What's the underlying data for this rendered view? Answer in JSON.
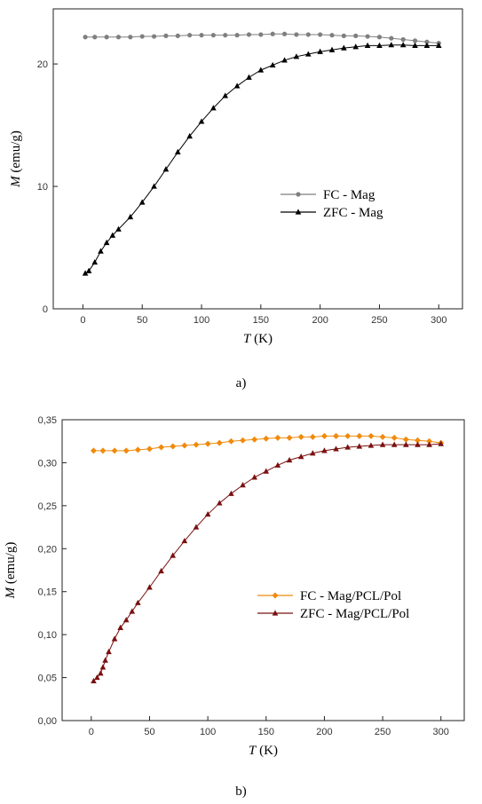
{
  "chart_data": [
    {
      "type": "scatter",
      "panel_label": "a)",
      "xlabel": {
        "symbol": "T",
        "unit": " (K)"
      },
      "ylabel": {
        "symbol": "M",
        "unit": " (emu/g)"
      },
      "xlim": [
        -25,
        320
      ],
      "ylim": [
        0,
        24.5
      ],
      "x_ticks": [
        0,
        50,
        100,
        150,
        200,
        250,
        300
      ],
      "y_ticks": [
        0,
        10,
        20
      ],
      "y_tick_labels": [
        "0",
        "10",
        "20"
      ],
      "legend": "center-right",
      "series": [
        {
          "name": "FC - Mag",
          "color": "#7f7f7f",
          "marker": "circle",
          "x": [
            2,
            10,
            20,
            30,
            40,
            50,
            60,
            70,
            80,
            90,
            100,
            110,
            120,
            130,
            140,
            150,
            160,
            170,
            180,
            190,
            200,
            210,
            220,
            230,
            240,
            250,
            260,
            270,
            280,
            290,
            300
          ],
          "y": [
            22.2,
            22.2,
            22.2,
            22.2,
            22.2,
            22.25,
            22.25,
            22.3,
            22.3,
            22.35,
            22.35,
            22.35,
            22.35,
            22.35,
            22.4,
            22.4,
            22.45,
            22.45,
            22.4,
            22.4,
            22.4,
            22.35,
            22.3,
            22.3,
            22.25,
            22.2,
            22.1,
            22.0,
            21.9,
            21.8,
            21.7
          ]
        },
        {
          "name": "ZFC - Mag",
          "color": "#000000",
          "marker": "triangle",
          "x": [
            2,
            5,
            10,
            15,
            20,
            25,
            30,
            40,
            50,
            60,
            70,
            80,
            90,
            100,
            110,
            120,
            130,
            140,
            150,
            160,
            170,
            180,
            190,
            200,
            210,
            220,
            230,
            240,
            250,
            260,
            270,
            280,
            290,
            300
          ],
          "y": [
            2.9,
            3.1,
            3.8,
            4.7,
            5.4,
            6.0,
            6.5,
            7.5,
            8.7,
            10.0,
            11.4,
            12.8,
            14.1,
            15.3,
            16.4,
            17.4,
            18.2,
            18.9,
            19.5,
            19.9,
            20.3,
            20.6,
            20.8,
            21.0,
            21.15,
            21.3,
            21.4,
            21.5,
            21.5,
            21.55,
            21.55,
            21.5,
            21.5,
            21.5
          ]
        }
      ]
    },
    {
      "type": "scatter",
      "panel_label": "b)",
      "xlabel": {
        "symbol": "T",
        "unit": " (K)"
      },
      "ylabel": {
        "symbol": "M",
        "unit": " (emu/g)"
      },
      "xlim": [
        -25,
        320
      ],
      "ylim": [
        0,
        0.35
      ],
      "x_ticks": [
        0,
        50,
        100,
        150,
        200,
        250,
        300
      ],
      "y_ticks": [
        0,
        0.05,
        0.1,
        0.15,
        0.2,
        0.25,
        0.3,
        0.35
      ],
      "y_tick_labels": [
        "0,00",
        "0,05",
        "0,10",
        "0,15",
        "0,20",
        "0,25",
        "0,30",
        "0,35"
      ],
      "legend": "center-right",
      "series": [
        {
          "name": "FC - Mag/PCL/Pol",
          "color": "#f08a0c",
          "marker": "diamond",
          "x": [
            2,
            10,
            20,
            30,
            40,
            50,
            60,
            70,
            80,
            90,
            100,
            110,
            120,
            130,
            140,
            150,
            160,
            170,
            180,
            190,
            200,
            210,
            220,
            230,
            240,
            250,
            260,
            270,
            280,
            290,
            300
          ],
          "y": [
            0.314,
            0.314,
            0.314,
            0.314,
            0.315,
            0.316,
            0.318,
            0.319,
            0.32,
            0.321,
            0.322,
            0.323,
            0.325,
            0.326,
            0.327,
            0.328,
            0.329,
            0.329,
            0.33,
            0.33,
            0.331,
            0.331,
            0.331,
            0.331,
            0.331,
            0.33,
            0.329,
            0.327,
            0.326,
            0.325,
            0.323
          ]
        },
        {
          "name": "ZFC - Mag/PCL/Pol",
          "color": "#7a1010",
          "marker": "triangle",
          "x": [
            2,
            5,
            8,
            10,
            12,
            15,
            20,
            25,
            30,
            35,
            40,
            50,
            60,
            70,
            80,
            90,
            100,
            110,
            120,
            130,
            140,
            150,
            160,
            170,
            180,
            190,
            200,
            210,
            220,
            230,
            240,
            250,
            260,
            270,
            280,
            290,
            300
          ],
          "y": [
            0.046,
            0.05,
            0.055,
            0.062,
            0.07,
            0.08,
            0.095,
            0.108,
            0.117,
            0.127,
            0.137,
            0.155,
            0.174,
            0.192,
            0.209,
            0.225,
            0.24,
            0.253,
            0.264,
            0.274,
            0.283,
            0.29,
            0.297,
            0.303,
            0.307,
            0.311,
            0.314,
            0.316,
            0.318,
            0.319,
            0.32,
            0.321,
            0.321,
            0.321,
            0.321,
            0.321,
            0.322
          ]
        }
      ]
    }
  ]
}
